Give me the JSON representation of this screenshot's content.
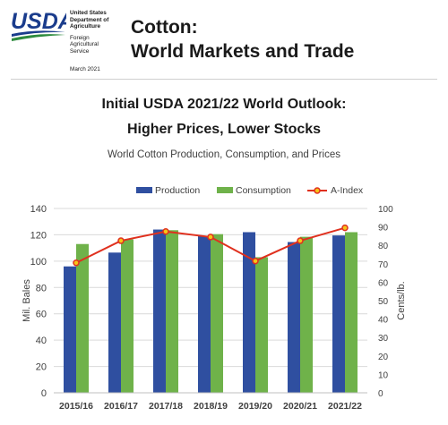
{
  "header": {
    "agency_lines_bold": [
      "United States",
      "Department of",
      "Agriculture"
    ],
    "agency_lines": [
      "Foreign",
      "Agricultural",
      "Service"
    ],
    "release_date": "March 2021",
    "logo_text": "USDA",
    "report_title_line1": "Cotton:",
    "report_title_line2": "World Markets and Trade"
  },
  "headline": {
    "line1": "Initial USDA 2021/22 World Outlook:",
    "line2": "Higher Prices, Lower Stocks"
  },
  "colors": {
    "production": "#2f4fa0",
    "consumption": "#6fb24a",
    "a_index": "#e0301e",
    "a_index_marker": "#f5c518",
    "logo_blue": "#1a3c8c",
    "logo_green": "#2e8b3e"
  },
  "chart_data": {
    "type": "bar",
    "title": "World Cotton Production, Consumption, and Prices",
    "categories": [
      "2015/16",
      "2016/17",
      "2017/18",
      "2018/19",
      "2019/20",
      "2020/21",
      "2021/22"
    ],
    "series": [
      {
        "name": "Production",
        "type": "bar",
        "axis": "left",
        "values": [
          96,
          106.5,
          124,
          119,
          122,
          114.5,
          119.5
        ]
      },
      {
        "name": "Consumption",
        "type": "bar",
        "axis": "left",
        "values": [
          113,
          116.5,
          123.5,
          120.5,
          103,
          118.5,
          122
        ]
      },
      {
        "name": "A-Index",
        "type": "line",
        "axis": "right",
        "values": [
          70.5,
          82.5,
          87.5,
          84.5,
          71.5,
          82.5,
          89.5
        ]
      }
    ],
    "ylabel": "Mil. Bales",
    "y2label": "Cents/lb.",
    "ylim": [
      0,
      140
    ],
    "y2lim": [
      0,
      100
    ],
    "yticks": [
      0,
      20,
      40,
      60,
      80,
      100,
      120,
      140
    ],
    "y2ticks": [
      0,
      10,
      20,
      30,
      40,
      50,
      60,
      70,
      80,
      90,
      100
    ],
    "grid": true,
    "legend_position": "top"
  }
}
